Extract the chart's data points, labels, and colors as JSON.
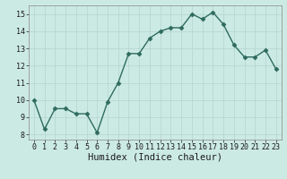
{
  "x": [
    0,
    1,
    2,
    3,
    4,
    5,
    6,
    7,
    8,
    9,
    10,
    11,
    12,
    13,
    14,
    15,
    16,
    17,
    18,
    19,
    20,
    21,
    22,
    23
  ],
  "y": [
    10.0,
    8.3,
    9.5,
    9.5,
    9.2,
    9.2,
    8.1,
    9.9,
    11.0,
    12.7,
    12.7,
    13.6,
    14.0,
    14.2,
    14.2,
    15.0,
    14.7,
    15.1,
    14.4,
    13.2,
    12.5,
    12.5,
    12.9,
    11.8
  ],
  "line_color": "#2e6b5e",
  "marker": "D",
  "marker_size": 2.5,
  "line_width": 1.0,
  "xlabel": "Humidex (Indice chaleur)",
  "xlim": [
    -0.5,
    23.5
  ],
  "ylim": [
    7.7,
    15.5
  ],
  "yticks": [
    8,
    9,
    10,
    11,
    12,
    13,
    14,
    15
  ],
  "xticks": [
    0,
    1,
    2,
    3,
    4,
    5,
    6,
    7,
    8,
    9,
    10,
    11,
    12,
    13,
    14,
    15,
    16,
    17,
    18,
    19,
    20,
    21,
    22,
    23
  ],
  "bg_color": "#cceae4",
  "grid_color": "#b8d8d2",
  "tick_fontsize": 6.0,
  "xlabel_fontsize": 7.5,
  "tick_label_color": "#1a1a1a",
  "fig_width": 3.2,
  "fig_height": 2.0,
  "dpi": 100
}
